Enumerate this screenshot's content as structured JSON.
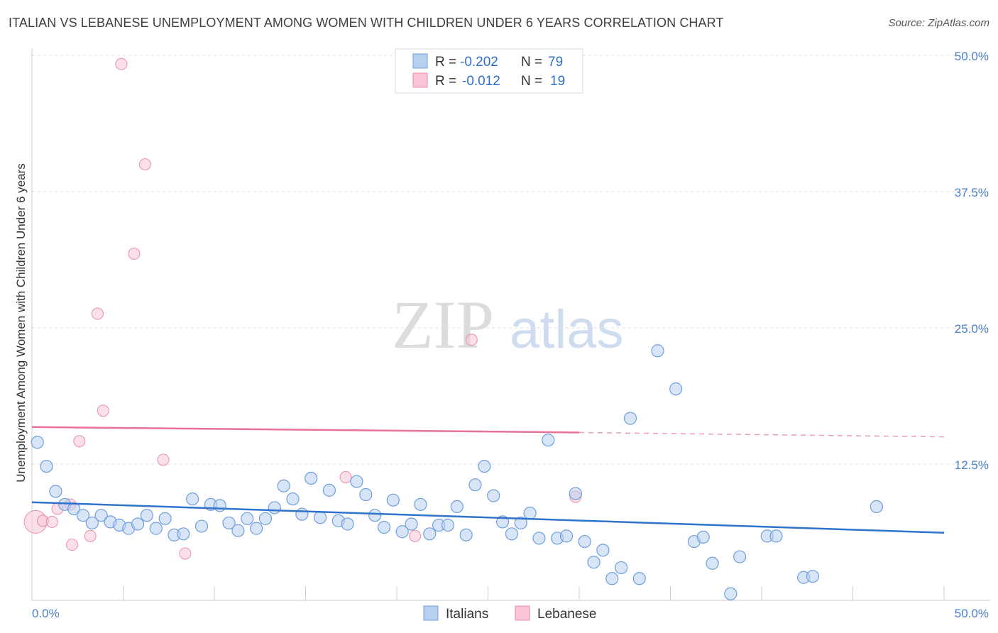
{
  "header": {
    "title": "ITALIAN VS LEBANESE UNEMPLOYMENT AMONG WOMEN WITH CHILDREN UNDER 6 YEARS CORRELATION CHART",
    "source": "Source: ZipAtlas.com"
  },
  "watermark": {
    "zip": "ZIP",
    "atlas": "atlas"
  },
  "legend": {
    "rows": [
      {
        "r_label": "R =",
        "r_value": "-0.202",
        "n_label": "N =",
        "n_value": "79"
      },
      {
        "r_label": "R =",
        "r_value": "-0.012",
        "n_label": "N =",
        "n_value": "19"
      }
    ]
  },
  "colors": {
    "italians_fill": "#b8d0f0",
    "italians_stroke": "#6f9fdc",
    "italians_line": "#2f72cc",
    "lebanese_fill": "#f8c6d6",
    "lebanese_stroke": "#e88fab",
    "lebanese_line": "#e8709a",
    "grid": "#dedede",
    "axis": "#cccccc"
  },
  "chart_data": {
    "type": "scatter",
    "title": "ITALIAN VS LEBANESE UNEMPLOYMENT AMONG WOMEN WITH CHILDREN UNDER 6 YEARS CORRELATION CHART",
    "xlabel": "",
    "ylabel": "Unemployment Among Women with Children Under 6 years",
    "xlim": [
      0,
      50
    ],
    "ylim": [
      0,
      50
    ],
    "x_tick_labels": [
      "0.0%",
      "50.0%"
    ],
    "y_ticks": [
      12.5,
      25.0,
      37.5,
      50.0
    ],
    "y_tick_labels": [
      "12.5%",
      "25.0%",
      "37.5%",
      "50.0%"
    ],
    "grid": true,
    "legend_position": "top-center",
    "series": [
      {
        "name": "Italians",
        "r": -0.202,
        "n": 79,
        "trend": {
          "x": [
            0,
            50
          ],
          "y": [
            9.0,
            6.2
          ]
        },
        "points": [
          [
            0.3,
            14.5
          ],
          [
            0.8,
            12.3
          ],
          [
            1.3,
            10.0
          ],
          [
            1.8,
            8.8
          ],
          [
            2.3,
            8.4
          ],
          [
            2.8,
            7.8
          ],
          [
            3.3,
            7.1
          ],
          [
            3.8,
            7.8
          ],
          [
            4.3,
            7.2
          ],
          [
            4.8,
            6.9
          ],
          [
            5.3,
            6.6
          ],
          [
            5.8,
            7.0
          ],
          [
            6.3,
            7.8
          ],
          [
            6.8,
            6.6
          ],
          [
            7.3,
            7.5
          ],
          [
            7.8,
            6.0
          ],
          [
            8.3,
            6.1
          ],
          [
            8.8,
            9.3
          ],
          [
            9.3,
            6.8
          ],
          [
            9.8,
            8.8
          ],
          [
            10.3,
            8.7
          ],
          [
            10.8,
            7.1
          ],
          [
            11.3,
            6.4
          ],
          [
            11.8,
            7.5
          ],
          [
            12.3,
            6.6
          ],
          [
            12.8,
            7.5
          ],
          [
            13.3,
            8.5
          ],
          [
            13.8,
            10.5
          ],
          [
            14.3,
            9.3
          ],
          [
            14.8,
            7.9
          ],
          [
            15.3,
            11.2
          ],
          [
            15.8,
            7.6
          ],
          [
            16.3,
            10.1
          ],
          [
            16.8,
            7.3
          ],
          [
            17.3,
            7.0
          ],
          [
            17.8,
            10.9
          ],
          [
            18.3,
            9.7
          ],
          [
            18.8,
            7.8
          ],
          [
            19.3,
            6.7
          ],
          [
            19.8,
            9.2
          ],
          [
            20.3,
            6.3
          ],
          [
            20.8,
            7.0
          ],
          [
            21.3,
            8.8
          ],
          [
            21.8,
            6.1
          ],
          [
            22.3,
            6.9
          ],
          [
            22.8,
            6.9
          ],
          [
            23.3,
            8.6
          ],
          [
            23.8,
            6.0
          ],
          [
            24.3,
            10.6
          ],
          [
            24.8,
            12.3
          ],
          [
            25.3,
            9.6
          ],
          [
            25.8,
            7.2
          ],
          [
            26.3,
            6.1
          ],
          [
            26.8,
            7.1
          ],
          [
            27.3,
            8.0
          ],
          [
            27.8,
            5.7
          ],
          [
            28.3,
            14.7
          ],
          [
            28.8,
            5.7
          ],
          [
            29.3,
            5.9
          ],
          [
            29.8,
            9.8
          ],
          [
            30.3,
            5.4
          ],
          [
            30.8,
            3.5
          ],
          [
            31.3,
            4.6
          ],
          [
            31.8,
            2.0
          ],
          [
            32.3,
            3.0
          ],
          [
            32.8,
            16.7
          ],
          [
            33.3,
            2.0
          ],
          [
            34.3,
            22.9
          ],
          [
            35.3,
            19.4
          ],
          [
            36.3,
            5.4
          ],
          [
            36.8,
            5.8
          ],
          [
            37.3,
            3.4
          ],
          [
            38.3,
            0.6
          ],
          [
            38.8,
            4.0
          ],
          [
            40.3,
            5.9
          ],
          [
            40.8,
            5.9
          ],
          [
            42.3,
            2.1
          ],
          [
            42.8,
            2.2
          ],
          [
            46.3,
            8.6
          ]
        ]
      },
      {
        "name": "Lebanese",
        "r": -0.012,
        "n": 19,
        "trend": {
          "x": [
            0,
            30
          ],
          "y": [
            15.9,
            15.4
          ]
        },
        "trend_dashed": {
          "x": [
            30,
            50
          ],
          "y": [
            15.4,
            15.0
          ]
        },
        "points": [
          [
            0.2,
            7.2
          ],
          [
            0.6,
            7.3
          ],
          [
            1.1,
            7.2
          ],
          [
            1.4,
            8.4
          ],
          [
            2.1,
            8.8
          ],
          [
            2.2,
            5.1
          ],
          [
            2.6,
            14.6
          ],
          [
            3.2,
            5.9
          ],
          [
            3.6,
            26.3
          ],
          [
            3.9,
            17.4
          ],
          [
            4.9,
            49.2
          ],
          [
            5.6,
            31.8
          ],
          [
            6.2,
            40.0
          ],
          [
            7.2,
            12.9
          ],
          [
            8.4,
            4.3
          ],
          [
            17.2,
            11.3
          ],
          [
            21.0,
            5.9
          ],
          [
            24.1,
            23.9
          ],
          [
            29.8,
            9.5
          ]
        ]
      }
    ]
  },
  "bottom_legend": {
    "italians": "Italians",
    "lebanese": "Lebanese"
  }
}
